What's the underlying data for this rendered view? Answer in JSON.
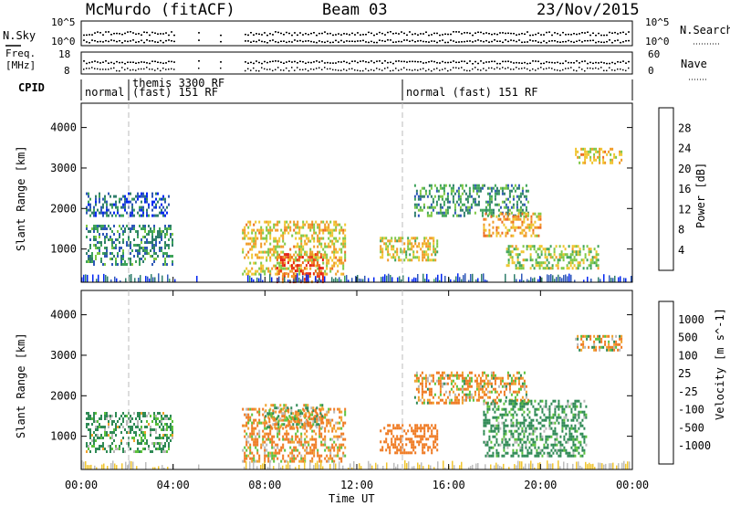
{
  "header": {
    "station": "McMurdo (fitACF)",
    "beam": "Beam 03",
    "date": "23/Nov/2015"
  },
  "top_panels": {
    "nsky_label": "N.Sky",
    "nsky_ticks": [
      "10^5",
      "10^0"
    ],
    "nsearch_label": "N.Search",
    "nsearch_ticks": [
      "10^5",
      "10^0"
    ],
    "freq_label_1": "Freq.",
    "freq_label_2": "[MHz]",
    "freq_ticks": [
      "18",
      "8"
    ],
    "nave_label": "Nave",
    "nave_ticks": [
      "60",
      "0"
    ],
    "cpid_label": "CPID",
    "cpid_segments": [
      {
        "label": "normal",
        "start_hour": 0,
        "end_hour": 2
      },
      {
        "label": "themis 3300 RF",
        "start_hour": 2,
        "end_hour": 14
      },
      {
        "label": "(fast) 151 RF",
        "start_hour": 2,
        "end_hour": 14
      },
      {
        "label": "normal (fast) 151 RF",
        "start_hour": 14,
        "end_hour": 24
      }
    ]
  },
  "chart_data": [
    {
      "type": "heatmap",
      "name": "power",
      "ylabel": "Slant Range [km]",
      "yticks": [
        "1000",
        "2000",
        "3000",
        "4000"
      ],
      "ylim": [
        180,
        4600
      ],
      "xlim": [
        0,
        24
      ],
      "colorbar_label": "Power [dB]",
      "colorbar_ticks": [
        "4",
        "8",
        "12",
        "16",
        "20",
        "24",
        "28"
      ],
      "colorbar_range": [
        0,
        32
      ],
      "colors": [
        "#0026f2",
        "#2f58b8",
        "#2f7e6b",
        "#3ea35a",
        "#7ec845",
        "#f0c52f",
        "#f09a24",
        "#ed6b1f",
        "#e8361a",
        "#e31b13"
      ],
      "data_gaps_hours": [
        [
          4.1,
          5.0
        ],
        [
          5.1,
          6.0
        ],
        [
          6.1,
          7.0
        ]
      ],
      "echo_regions": [
        {
          "hours": [
            0.2,
            4.0
          ],
          "range_km": [
            600,
            1600
          ],
          "level_db": 9
        },
        {
          "hours": [
            0.2,
            3.8
          ],
          "range_km": [
            1800,
            2400
          ],
          "level_db": 6
        },
        {
          "hours": [
            7.0,
            11.5
          ],
          "range_km": [
            400,
            1700
          ],
          "level_db": 18
        },
        {
          "hours": [
            8.5,
            10.5
          ],
          "range_km": [
            200,
            900
          ],
          "level_db": 26
        },
        {
          "hours": [
            13.0,
            15.5
          ],
          "range_km": [
            700,
            1300
          ],
          "level_db": 17
        },
        {
          "hours": [
            14.5,
            19.5
          ],
          "range_km": [
            1800,
            2600
          ],
          "level_db": 10
        },
        {
          "hours": [
            17.5,
            20.0
          ],
          "range_km": [
            1300,
            1900
          ],
          "level_db": 20
        },
        {
          "hours": [
            18.5,
            22.5
          ],
          "range_km": [
            500,
            1100
          ],
          "level_db": 15
        },
        {
          "hours": [
            21.5,
            23.5
          ],
          "range_km": [
            3100,
            3500
          ],
          "level_db": 18
        }
      ]
    },
    {
      "type": "heatmap",
      "name": "velocity",
      "ylabel": "Slant Range [km]",
      "yticks": [
        "1000",
        "2000",
        "3000",
        "4000"
      ],
      "ylim": [
        180,
        4600
      ],
      "xlim": [
        0,
        24
      ],
      "xlabel": "Time UT",
      "xticks": [
        "00:00",
        "04:00",
        "08:00",
        "12:00",
        "16:00",
        "20:00",
        "00:00"
      ],
      "colorbar_label": "Velocity [m s^-1]",
      "colorbar_ticks": [
        "1000",
        "500",
        "100",
        "25",
        "-25",
        "-100",
        "-500",
        "-1000"
      ],
      "colors": [
        "#2f49b7",
        "#3a6ea2",
        "#2f8a55",
        "#5bc23c",
        "#b8b8b8",
        "#bdbdbd",
        "#f0a12c",
        "#ef7a22",
        "#e9551b",
        "#e31b13"
      ],
      "echo_regions": [
        {
          "hours": [
            0.2,
            4.0
          ],
          "range_km": [
            600,
            1600
          ],
          "velocity": 150
        },
        {
          "hours": [
            7.0,
            11.5
          ],
          "range_km": [
            400,
            1700
          ],
          "velocity": -120
        },
        {
          "hours": [
            8.0,
            10.5
          ],
          "range_km": [
            1200,
            1800
          ],
          "velocity": 0
        },
        {
          "hours": [
            13.0,
            15.5
          ],
          "range_km": [
            600,
            1300
          ],
          "velocity": -300
        },
        {
          "hours": [
            14.5,
            19.5
          ],
          "range_km": [
            1800,
            2600
          ],
          "velocity": -80
        },
        {
          "hours": [
            17.5,
            22.0
          ],
          "range_km": [
            500,
            1900
          ],
          "velocity": 200
        },
        {
          "hours": [
            21.5,
            23.5
          ],
          "range_km": [
            3100,
            3500
          ],
          "velocity": -20
        }
      ]
    }
  ]
}
